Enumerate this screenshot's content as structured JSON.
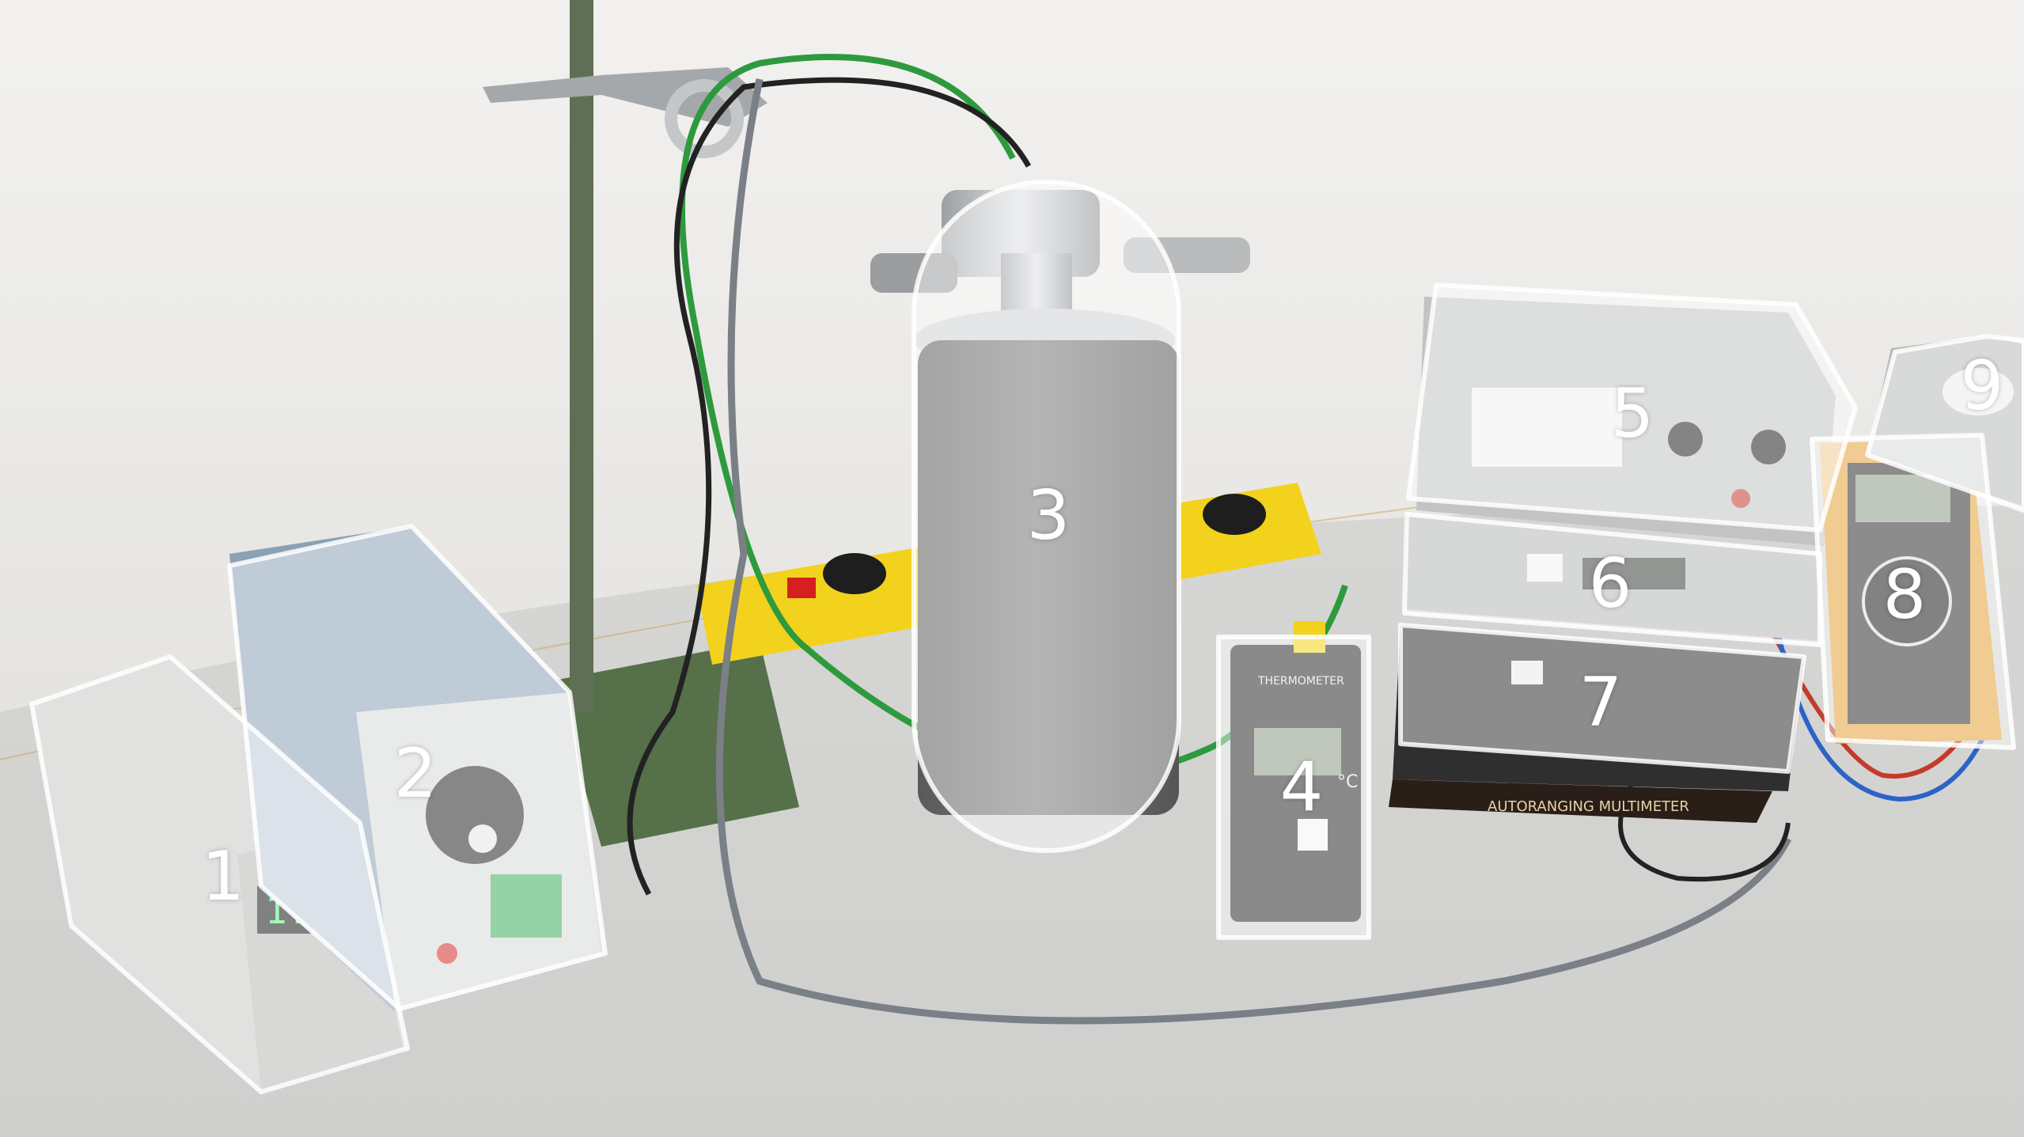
{
  "photo": {
    "colors": {
      "wall": "#efeeec",
      "table": "#d9d9d7",
      "overlay": "#ffffff",
      "cylinder": "#6a6a6a",
      "power_strip": "#f2d21c",
      "wire_green": "#2e9a3e",
      "display_green": "#4cff7a"
    }
  },
  "devices": [
    {
      "number": "1"
    },
    {
      "number": "2"
    },
    {
      "number": "3"
    },
    {
      "number": "4"
    },
    {
      "number": "5"
    },
    {
      "number": "6"
    },
    {
      "number": "7"
    },
    {
      "number": "8"
    },
    {
      "number": "9"
    }
  ],
  "printed_text": {
    "display_1": "1.2-2",
    "thermometer_label": "THERMOMETER",
    "degree": "°C",
    "multimeter_label": "AUTORANGING MULTIMETER"
  }
}
